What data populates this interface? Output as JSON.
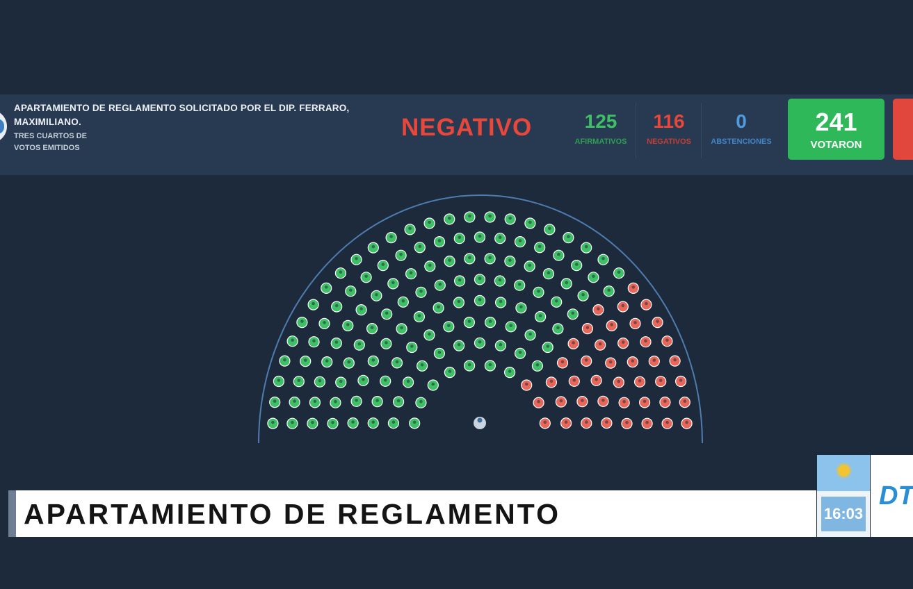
{
  "vote": {
    "title_line1": "APARTAMIENTO DE REGLAMENTO SOLICITADO POR EL DIP. FERRARO,",
    "title_line2": "MAXIMILIANO.",
    "majority_line1": "TRES CUARTOS DE",
    "majority_line2": "VOTOS EMITIDOS",
    "result": "NEGATIVO"
  },
  "stats": {
    "afirmativos": {
      "value": "125",
      "label": "AFIRMATIVOS",
      "color": "#3fbf66"
    },
    "negativos": {
      "value": "116",
      "label": "NEGATIVOS",
      "color": "#e8473b"
    },
    "abstenciones": {
      "value": "0",
      "label": "ABSTENCIONES",
      "color": "#4f9be0"
    },
    "votaron": {
      "value": "241",
      "label": "VOTARON",
      "color": "#2fb85a"
    }
  },
  "seat_colors": {
    "afirmativo": "#3fbf66",
    "negativo": "#e8675a",
    "ausente": "#6e7b89"
  },
  "lower_third": {
    "text": "APARTAMIENTO DE REGLAMENTO"
  },
  "clock": {
    "time": "16:03"
  },
  "channel": {
    "logo_text": "DT"
  }
}
